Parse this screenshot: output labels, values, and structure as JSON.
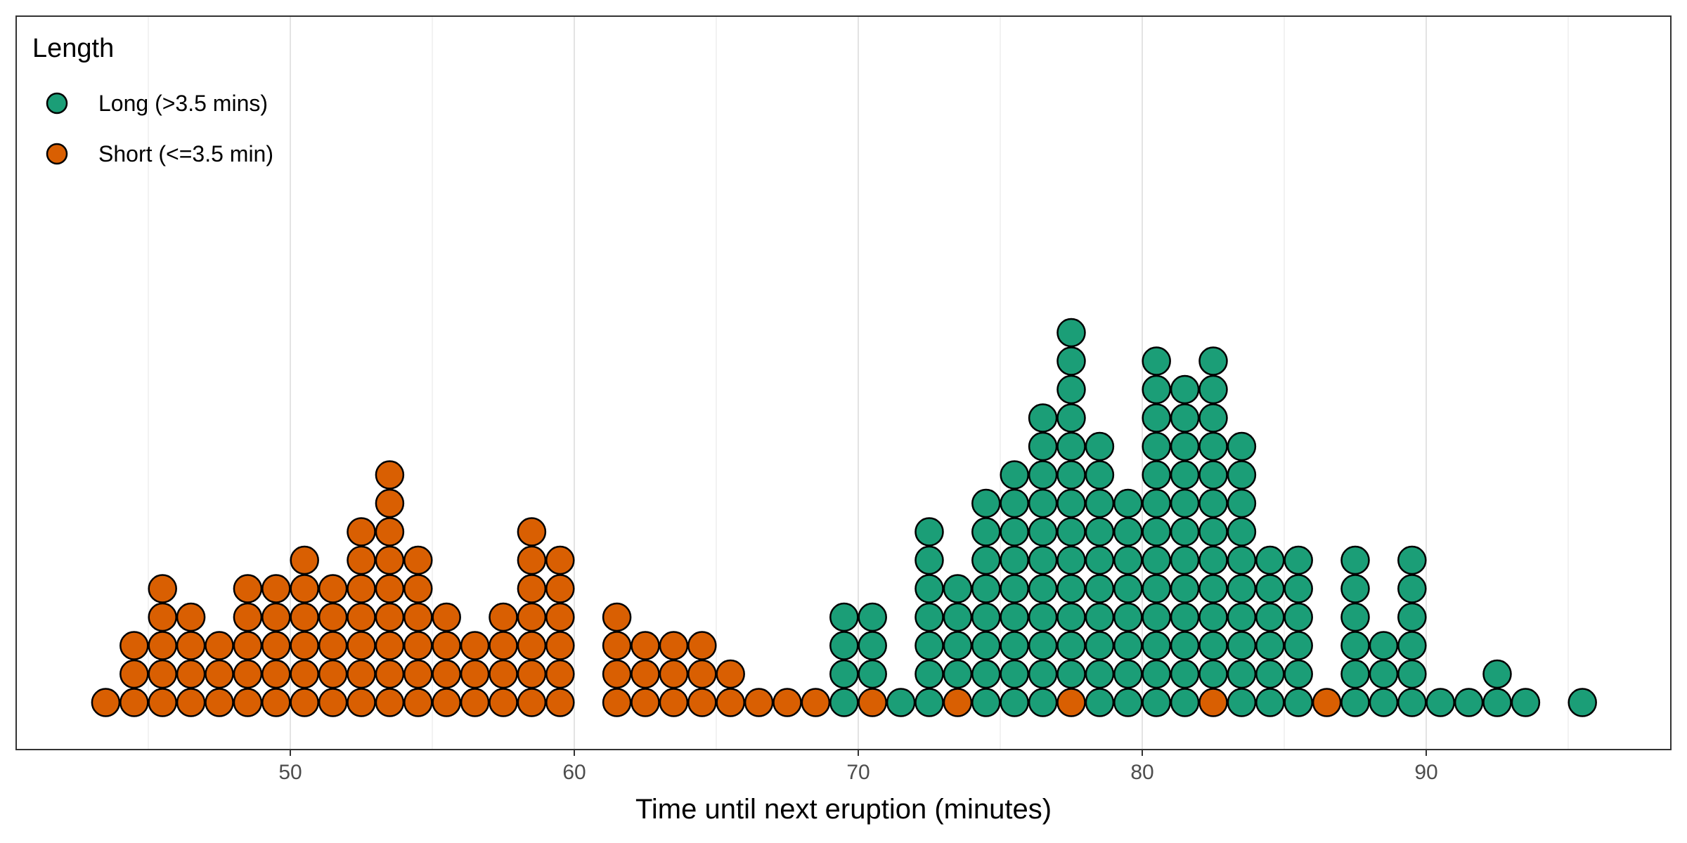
{
  "chart_data": {
    "type": "dotplot",
    "xlabel": "Time until next eruption (minutes)",
    "ylabel": "",
    "xlim": [
      41,
      99
    ],
    "x_ticks": [
      50,
      60,
      70,
      80,
      90
    ],
    "grid": "vertical",
    "legend": {
      "title": "Length",
      "placement": "inside-top-left",
      "entries": [
        {
          "label": "Long (>3.5 mins)",
          "color": "#1B9E77"
        },
        {
          "label": "Short (<=3.5 min)",
          "color": "#D95F02"
        }
      ]
    },
    "stacks": [
      {
        "x": 43.5,
        "dots": [
          "Short"
        ]
      },
      {
        "x": 44.5,
        "dots": [
          "Short",
          "Short",
          "Short"
        ]
      },
      {
        "x": 45.5,
        "dots": [
          "Short",
          "Short",
          "Short",
          "Short",
          "Short"
        ]
      },
      {
        "x": 46.5,
        "dots": [
          "Short",
          "Short",
          "Short",
          "Short"
        ]
      },
      {
        "x": 47.5,
        "dots": [
          "Short",
          "Short",
          "Short"
        ]
      },
      {
        "x": 48.5,
        "dots": [
          "Short",
          "Short",
          "Short",
          "Short",
          "Short"
        ]
      },
      {
        "x": 49.5,
        "dots": [
          "Short",
          "Short",
          "Short",
          "Short",
          "Short"
        ]
      },
      {
        "x": 50.5,
        "dots": [
          "Short",
          "Short",
          "Short",
          "Short",
          "Short",
          "Short"
        ]
      },
      {
        "x": 51.5,
        "dots": [
          "Short",
          "Short",
          "Short",
          "Short",
          "Short"
        ]
      },
      {
        "x": 52.5,
        "dots": [
          "Short",
          "Short",
          "Short",
          "Short",
          "Short",
          "Short",
          "Short"
        ]
      },
      {
        "x": 53.5,
        "dots": [
          "Short",
          "Short",
          "Short",
          "Short",
          "Short",
          "Short",
          "Short",
          "Short",
          "Short"
        ]
      },
      {
        "x": 54.5,
        "dots": [
          "Short",
          "Short",
          "Short",
          "Short",
          "Short",
          "Short"
        ]
      },
      {
        "x": 55.5,
        "dots": [
          "Short",
          "Short",
          "Short",
          "Short"
        ]
      },
      {
        "x": 56.5,
        "dots": [
          "Short",
          "Short",
          "Short"
        ]
      },
      {
        "x": 57.5,
        "dots": [
          "Short",
          "Short",
          "Short",
          "Short"
        ]
      },
      {
        "x": 58.5,
        "dots": [
          "Short",
          "Short",
          "Short",
          "Short",
          "Short",
          "Short",
          "Short"
        ]
      },
      {
        "x": 59.5,
        "dots": [
          "Short",
          "Short",
          "Short",
          "Short",
          "Short",
          "Short"
        ]
      },
      {
        "x": 61.5,
        "dots": [
          "Short",
          "Short",
          "Short",
          "Short"
        ]
      },
      {
        "x": 62.5,
        "dots": [
          "Short",
          "Short",
          "Short"
        ]
      },
      {
        "x": 63.5,
        "dots": [
          "Short",
          "Short",
          "Short"
        ]
      },
      {
        "x": 64.5,
        "dots": [
          "Short",
          "Short",
          "Short"
        ]
      },
      {
        "x": 65.5,
        "dots": [
          "Short",
          "Short"
        ]
      },
      {
        "x": 66.5,
        "dots": [
          "Short"
        ]
      },
      {
        "x": 67.5,
        "dots": [
          "Short"
        ]
      },
      {
        "x": 68.5,
        "dots": [
          "Short"
        ]
      },
      {
        "x": 69.5,
        "dots": [
          "Long",
          "Long",
          "Long",
          "Long"
        ]
      },
      {
        "x": 70.5,
        "dots": [
          "Short",
          "Long",
          "Long",
          "Long"
        ]
      },
      {
        "x": 71.5,
        "dots": [
          "Long"
        ]
      },
      {
        "x": 72.5,
        "dots": [
          "Long",
          "Long",
          "Long",
          "Long",
          "Long",
          "Long",
          "Long"
        ]
      },
      {
        "x": 73.5,
        "dots": [
          "Short",
          "Long",
          "Long",
          "Long",
          "Long"
        ]
      },
      {
        "x": 74.5,
        "dots": [
          "Long",
          "Long",
          "Long",
          "Long",
          "Long",
          "Long",
          "Long",
          "Long"
        ]
      },
      {
        "x": 75.5,
        "dots": [
          "Long",
          "Long",
          "Long",
          "Long",
          "Long",
          "Long",
          "Long",
          "Long",
          "Long"
        ]
      },
      {
        "x": 76.5,
        "dots": [
          "Long",
          "Long",
          "Long",
          "Long",
          "Long",
          "Long",
          "Long",
          "Long",
          "Long",
          "Long",
          "Long"
        ]
      },
      {
        "x": 77.5,
        "dots": [
          "Short",
          "Long",
          "Long",
          "Long",
          "Long",
          "Long",
          "Long",
          "Long",
          "Long",
          "Long",
          "Long",
          "Long",
          "Long",
          "Long"
        ]
      },
      {
        "x": 78.5,
        "dots": [
          "Long",
          "Long",
          "Long",
          "Long",
          "Long",
          "Long",
          "Long",
          "Long",
          "Long",
          "Long"
        ]
      },
      {
        "x": 79.5,
        "dots": [
          "Long",
          "Long",
          "Long",
          "Long",
          "Long",
          "Long",
          "Long",
          "Long"
        ]
      },
      {
        "x": 80.5,
        "dots": [
          "Long",
          "Long",
          "Long",
          "Long",
          "Long",
          "Long",
          "Long",
          "Long",
          "Long",
          "Long",
          "Long",
          "Long",
          "Long"
        ]
      },
      {
        "x": 81.5,
        "dots": [
          "Long",
          "Long",
          "Long",
          "Long",
          "Long",
          "Long",
          "Long",
          "Long",
          "Long",
          "Long",
          "Long",
          "Long"
        ]
      },
      {
        "x": 82.5,
        "dots": [
          "Short",
          "Long",
          "Long",
          "Long",
          "Long",
          "Long",
          "Long",
          "Long",
          "Long",
          "Long",
          "Long",
          "Long",
          "Long"
        ]
      },
      {
        "x": 83.5,
        "dots": [
          "Long",
          "Long",
          "Long",
          "Long",
          "Long",
          "Long",
          "Long",
          "Long",
          "Long",
          "Long"
        ]
      },
      {
        "x": 84.5,
        "dots": [
          "Long",
          "Long",
          "Long",
          "Long",
          "Long",
          "Long"
        ]
      },
      {
        "x": 85.5,
        "dots": [
          "Long",
          "Long",
          "Long",
          "Long",
          "Long",
          "Long"
        ]
      },
      {
        "x": 86.5,
        "dots": [
          "Short"
        ]
      },
      {
        "x": 87.5,
        "dots": [
          "Long",
          "Long",
          "Long",
          "Long",
          "Long",
          "Long"
        ]
      },
      {
        "x": 88.5,
        "dots": [
          "Long",
          "Long",
          "Long"
        ]
      },
      {
        "x": 89.5,
        "dots": [
          "Long",
          "Long",
          "Long",
          "Long",
          "Long",
          "Long"
        ]
      },
      {
        "x": 90.5,
        "dots": [
          "Long"
        ]
      },
      {
        "x": 91.5,
        "dots": [
          "Long"
        ]
      },
      {
        "x": 92.5,
        "dots": [
          "Long",
          "Long"
        ]
      },
      {
        "x": 93.5,
        "dots": [
          "Long"
        ]
      },
      {
        "x": 95.5,
        "dots": [
          "Long"
        ]
      }
    ]
  }
}
